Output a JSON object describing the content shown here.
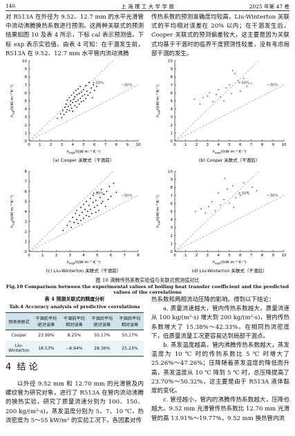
{
  "header": {
    "page": "146",
    "journal": "上 海 理 工 大 学 学 报",
    "volume": "2025 年第 47 卷"
  },
  "intro": {
    "left": "对 R513A 在外径为 9.52、12.7 mm 的水平光滑管中流动沸腾换热系数进行预测。这两种关联式的预测结果如图 10 及表 4 所示，下标 cal 表示预测值，下标 exp 表示实验值。由表 4 可知：在干涸发生前，R513A 在 9.52、12.7 mm 水平管内流动沸腾",
    "right": "传热系数的预测准确度均较高，Liu-Winterton 关联式的平均相对误差在 20% 以内；在干涸发生后，Cooper 关联式的预测偏差较大，这主要是因为关联式均基于干涸时的临界干度预测性较差，没有考虑局部干涸的发生。"
  },
  "chart_data": [
    {
      "type": "scatter",
      "subtitle": "(a) Cooper 关联式（干涸前）",
      "color": "#000000",
      "xlabel": {
        "symbol": "h",
        "sub": "exp",
        "unit": "/(kW·m⁻²·K⁻¹)"
      },
      "ylabel": {
        "symbol": "h",
        "sub": "cal",
        "unit": "/(kW·m⁻²·K⁻¹)"
      },
      "xlim": [
        0,
        10
      ],
      "ylim": [
        0,
        10
      ],
      "xticks": [
        0,
        1,
        2,
        3,
        4,
        5,
        6,
        7,
        8,
        9,
        10
      ],
      "yticks": [
        0,
        1,
        2,
        3,
        4,
        5,
        6,
        7,
        8,
        9,
        10
      ],
      "reference_lines": [
        {
          "label": "+30%",
          "slope": 1.3
        },
        {
          "label": "−30%",
          "slope": 0.7
        }
      ],
      "x": [
        2.6,
        2.9,
        3.0,
        3.1,
        3.2,
        3.3,
        3.4,
        3.4,
        3.5,
        3.5,
        3.6,
        3.7,
        3.7,
        3.8,
        3.8,
        3.9,
        3.9,
        4.0,
        4.0,
        4.1,
        4.1,
        4.2,
        4.2,
        4.3,
        4.3,
        4.4,
        4.4,
        4.5,
        4.5,
        4.6,
        4.6,
        4.7,
        4.7,
        4.8,
        4.8,
        4.9,
        5.0,
        5.0,
        5.1,
        5.2,
        5.2,
        5.3,
        5.4,
        5.5,
        5.6,
        5.7,
        5.8,
        5.9,
        6.0,
        6.2
      ],
      "y": [
        2.8,
        3.4,
        2.9,
        3.8,
        3.3,
        4.2,
        3.6,
        4.6,
        3.9,
        5.1,
        4.3,
        3.8,
        5.4,
        4.5,
        5.0,
        4.1,
        5.7,
        4.8,
        3.7,
        5.2,
        6.0,
        4.4,
        5.5,
        4.9,
        6.3,
        4.2,
        5.8,
        5.1,
        6.5,
        4.6,
        5.9,
        5.3,
        6.8,
        4.9,
        6.1,
        5.6,
        5.0,
        6.4,
        5.8,
        6.9,
        5.3,
        6.2,
        5.7,
        7.3,
        6.0,
        6.6,
        5.4,
        7.0,
        6.3,
        6.8
      ]
    },
    {
      "type": "scatter",
      "subtitle": "(b) Cooper 关联式（干涸后）",
      "color": "#d62728",
      "xlabel": {
        "symbol": "h",
        "sub": "exp",
        "unit": "/(kW·m⁻²·K⁻¹)"
      },
      "ylabel": {
        "symbol": "h",
        "sub": "cal",
        "unit": "/(kW·m⁻²·K⁻¹)"
      },
      "xlim": [
        0,
        10
      ],
      "ylim": [
        0,
        10
      ],
      "xticks": [
        0,
        1,
        2,
        3,
        4,
        5,
        6,
        7,
        8,
        9,
        10
      ],
      "yticks": [
        0,
        1,
        2,
        3,
        4,
        5,
        6,
        7,
        8,
        9,
        10
      ],
      "reference_lines": [
        {
          "label": "+30%",
          "slope": 1.3
        },
        {
          "label": "−30%",
          "slope": 0.7
        }
      ],
      "x": [
        1.8,
        2.3,
        2.6,
        3.0,
        3.2,
        3.5,
        3.8,
        4.0,
        4.2,
        4.5,
        4.7,
        5.0,
        5.2,
        5.5,
        5.8,
        6.0,
        6.3,
        6.6,
        7.0,
        5.3
      ],
      "y": [
        5.2,
        4.6,
        5.4,
        5.6,
        6.0,
        4.9,
        5.8,
        6.4,
        5.5,
        5.0,
        6.6,
        7.0,
        5.9,
        8.4,
        7.5,
        6.2,
        7.8,
        6.8,
        7.2,
        8.8
      ]
    },
    {
      "type": "scatter",
      "subtitle": "(c) Liu-Winterton 关联式（干涸前）",
      "color": "#000000",
      "xlabel": {
        "symbol": "h",
        "sub": "exp",
        "unit": "/(kW·m⁻²·K⁻¹)"
      },
      "ylabel": {
        "symbol": "h",
        "sub": "cal",
        "unit": "/(kW·m⁻²·K⁻¹)"
      },
      "xlim": [
        0,
        8
      ],
      "ylim": [
        0,
        8
      ],
      "xticks": [
        0,
        1,
        2,
        3,
        4,
        5,
        6,
        7,
        8
      ],
      "yticks": [
        0,
        1,
        2,
        3,
        4,
        5,
        6,
        7,
        8
      ],
      "reference_lines": [
        {
          "label": "+30%",
          "slope": 1.3
        },
        {
          "label": "−30%",
          "slope": 0.7
        }
      ],
      "x": [
        2.5,
        2.8,
        3.0,
        3.1,
        3.2,
        3.3,
        3.4,
        3.5,
        3.5,
        3.6,
        3.7,
        3.8,
        3.8,
        3.9,
        4.0,
        4.0,
        4.1,
        4.2,
        4.2,
        4.3,
        4.4,
        4.4,
        4.5,
        4.5,
        4.6,
        4.7,
        4.7,
        4.8,
        4.9,
        4.9,
        5.0,
        5.0,
        5.1,
        5.2,
        5.3,
        5.3,
        5.4,
        5.5,
        5.6,
        5.7,
        5.8,
        5.9,
        6.0,
        6.2,
        6.4
      ],
      "y": [
        2.1,
        2.6,
        3.0,
        2.4,
        3.4,
        2.9,
        3.8,
        3.2,
        4.1,
        2.8,
        3.6,
        4.4,
        3.1,
        3.9,
        4.7,
        3.3,
        4.2,
        3.6,
        5.0,
        4.0,
        4.6,
        3.5,
        5.3,
        4.2,
        3.8,
        4.9,
        5.6,
        4.4,
        3.9,
        5.1,
        4.6,
        5.9,
        4.1,
        5.4,
        4.8,
        6.2,
        5.0,
        5.7,
        4.5,
        6.0,
        5.2,
        6.5,
        5.5,
        6.8,
        5.9
      ]
    },
    {
      "type": "scatter",
      "subtitle": "(d) Liu-Winterton 关联式（干涸后）",
      "color": "#d62728",
      "xlabel": {
        "symbol": "h",
        "sub": "exp",
        "unit": "/(kW·m⁻²·K⁻¹)"
      },
      "ylabel": {
        "symbol": "h",
        "sub": "cal",
        "unit": "/(kW·m⁻²·K⁻¹)"
      },
      "xlim": [
        0,
        10
      ],
      "ylim": [
        0,
        10
      ],
      "xticks": [
        0,
        1,
        2,
        3,
        4,
        5,
        6,
        7,
        8,
        9,
        10
      ],
      "yticks": [
        0,
        1,
        2,
        3,
        4,
        5,
        6,
        7,
        8,
        9,
        10
      ],
      "reference_lines": [
        {
          "label": "+30%",
          "slope": 1.3
        },
        {
          "label": "−30%",
          "slope": 0.7
        }
      ],
      "x": [
        1.9,
        2.4,
        2.8,
        3.1,
        3.4,
        3.7,
        4.0,
        4.2,
        4.5,
        4.8,
        5.0,
        5.3,
        5.6,
        6.0,
        6.3,
        6.7,
        7.1,
        7.5,
        4.6,
        5.4
      ],
      "y": [
        5.0,
        5.3,
        4.8,
        5.6,
        6.2,
        5.1,
        7.3,
        5.8,
        6.5,
        7.8,
        6.0,
        8.2,
        6.7,
        7.0,
        8.6,
        7.4,
        8.0,
        7.6,
        9.1,
        5.5
      ]
    }
  ],
  "figure": {
    "caption_cn": "图 10  沸腾传热系数实验值与关联式预测值对比",
    "caption_en": "Fig.10   Comparison between the experimental values of boiling heat transfer coefficient and the predicted values of the correlations"
  },
  "table": {
    "title_cn": "表 4   预测关联式的精度分析",
    "title_en": "Tab.4   Accuracy analysis of predictive correlations",
    "columns": [
      "预测关联式",
      "干涸前平均绝对误差",
      "干涸前平均相对误差",
      "干涸后平均绝对误差",
      "干涸后平均相对误差"
    ],
    "rows": [
      [
        "Cooper",
        "23.99%",
        "8.25%",
        "50.17%",
        "50.17%"
      ],
      [
        "Liu-Winterton",
        "18.53%",
        "−8.94%",
        "28.36%",
        "25.23%"
      ]
    ]
  },
  "section": {
    "number": "4",
    "title": "结  论"
  },
  "body": {
    "left": "以外径 9.52 mm 和 12.70 mm 的光滑管及内螺纹管为研究对象，进行了 R513A 在管内流动沸腾的换热实验，研究了质量流速分别为 100、150、200 kg/(m²·s)，蒸发温度分别为 5、7、10 ℃，热流密度为 5～55 kW/m² 的实验工况下，各因素对传",
    "right": [
      "热系数和两相流动压降的影响。得到以下结论：",
      "a. 质量流速越大，管内传热系数越大，质量流速从 100 kg/(m²·s) 增大到 200 kg/(m²·s)，管内传热系数增大了 15.38%～42.33%。在相同热流密度下，低质量流量工况更容易达到局部干涸点。",
      "b. 蒸发温度越高，管内沸腾传热系数越大，蒸发温度为 10 ℃ 时的传热系数比 5 ℃ 时增大了 25.26%～47.26%；压降随着蒸发温度的降低而升高，蒸发温度从 10 ℃ 降到 5 ℃ 时，总压降提高了 23.70%～50.32%，这主要是由于 R513A 液体黏度的变化。",
      "c. 管径越小，管内的沸腾传热系数越大，压降也越大。9.52 mm 光滑管传热系数比 12.70 mm 光滑管的高 13.91%～19.77%，9.52 mm 换热管内流"
    ]
  }
}
